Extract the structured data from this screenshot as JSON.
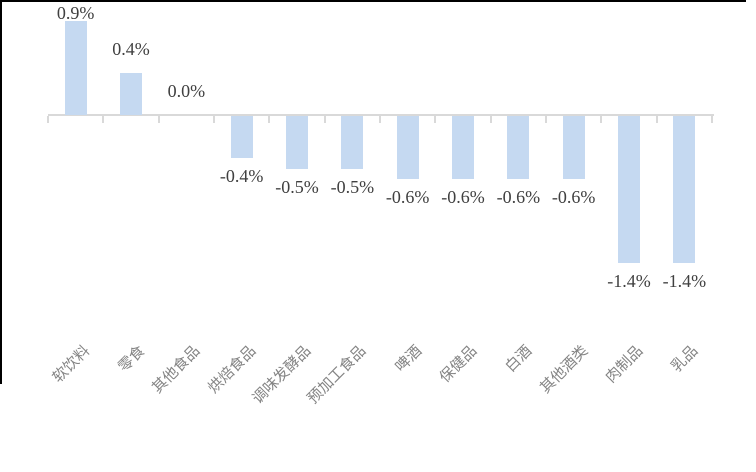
{
  "chart_data": {
    "type": "bar",
    "title": "",
    "xlabel": "",
    "ylabel": "",
    "grid": false,
    "legend": false,
    "axis_range_note": "no y-axis scale shown; baseline at 0%",
    "categories": [
      "软饮料",
      "零食",
      "其他食品",
      "烘焙食品",
      "调味发酵品",
      "预加工食品",
      "啤酒",
      "保健品",
      "白酒",
      "其他酒类",
      "肉制品",
      "乳品"
    ],
    "values": [
      0.9,
      0.4,
      0.0,
      -0.4,
      -0.5,
      -0.5,
      -0.6,
      -0.6,
      -0.6,
      -0.6,
      -1.4,
      -1.4
    ],
    "data_labels": [
      "0.9%",
      "0.4%",
      "0.0%",
      "-0.4%",
      "-0.5%",
      "-0.5%",
      "-0.6%",
      "-0.6%",
      "-0.6%",
      "-0.6%",
      "-1.4%",
      "-1.4%"
    ],
    "colors": {
      "bar_fill": "#C5D9F1",
      "axis_line": "#D9D9D9",
      "tick": "#D9D9D9",
      "value_label": "#404040",
      "category_label": "#848484",
      "figure_border": "#000000"
    }
  }
}
